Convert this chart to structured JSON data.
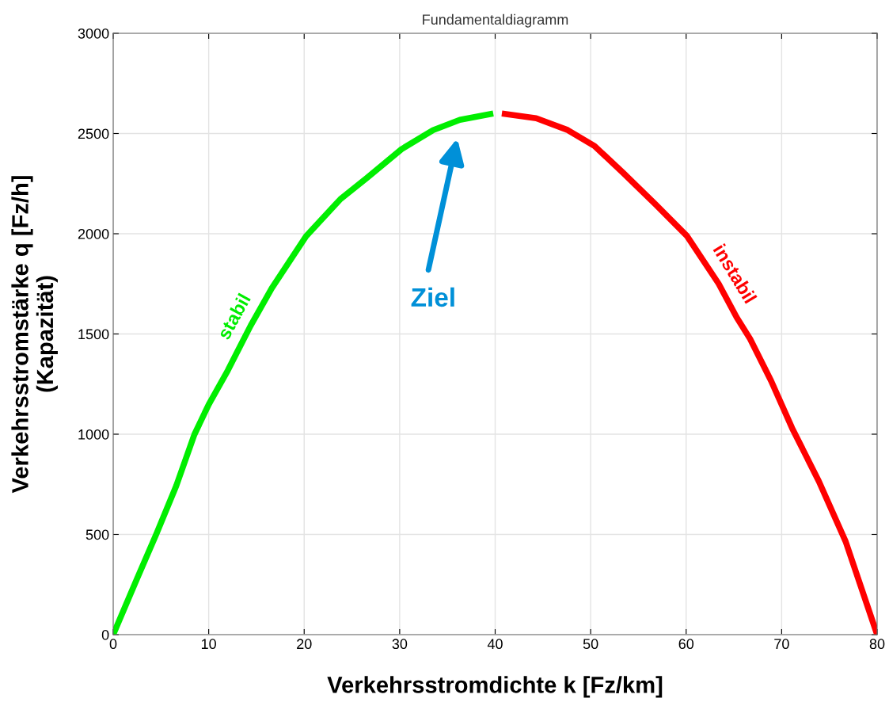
{
  "chart_data": {
    "type": "line",
    "title": "Fundamentaldiagramm",
    "xlabel": "Verkehrsstromdichte k [Fz/km]",
    "ylabel": "Verkehrsstromstärke q [Fz/h]\n(Kapazität)",
    "series": [
      {
        "name": "stabil",
        "color": "#00ee00",
        "x": [
          0,
          2.5,
          4.5,
          6.6,
          8.5,
          10,
          12,
          13.3,
          14.4,
          16.6,
          20.2,
          23.8,
          26.6,
          30.2,
          33.5,
          36.3,
          39.8
        ],
        "values": [
          0,
          280,
          500,
          742,
          998,
          1148,
          1318,
          1440,
          1542,
          1728,
          1988,
          2173,
          2280,
          2422,
          2517,
          2568,
          2600
        ]
      },
      {
        "name": "instabil",
        "color": "#ff0000",
        "x": [
          40.7,
          44.3,
          47.6,
          50.4,
          53.4,
          56.8,
          60.1,
          63.4,
          65.3,
          66.7,
          68.9,
          71.1,
          73.9,
          76.7,
          80
        ],
        "values": [
          2600,
          2576,
          2517,
          2438,
          2304,
          2146,
          1988,
          1751,
          1582,
          1475,
          1266,
          1030,
          765,
          465,
          0
        ]
      }
    ],
    "annotations": [
      "Ziel"
    ],
    "xlim": [
      0,
      80
    ],
    "xticks": [
      0,
      10,
      20,
      30,
      40,
      50,
      60,
      70,
      80
    ],
    "ylim": [
      0,
      3000
    ],
    "yticks": [
      0,
      500,
      1000,
      1500,
      2000,
      2500,
      3000
    ],
    "grid": true,
    "marker": "none",
    "line_style": "solid",
    "legend": false
  }
}
